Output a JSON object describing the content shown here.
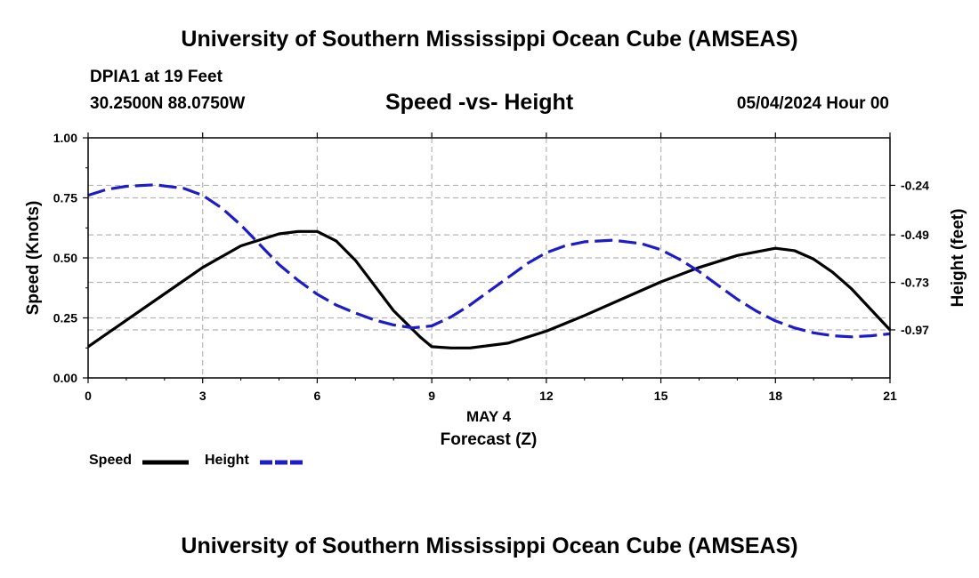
{
  "page": {
    "title": "University of Southern Mississippi Ocean Cube (AMSEAS)",
    "footer_title": "University of Southern Mississippi Ocean Cube (AMSEAS)",
    "station_line1": "DPIA1 at 19 Feet",
    "station_line2": "30.2500N  88.0750W",
    "date_label": "05/04/2024 Hour 00"
  },
  "chart_data": {
    "type": "line",
    "title": "Speed -vs- Height",
    "xlabel": "Forecast (Z)",
    "xlabel_date": "MAY 4",
    "ylabel": "Speed (Knots)",
    "y2label": "Height (feet)",
    "xlim": [
      0,
      21
    ],
    "ylim": [
      0,
      1
    ],
    "y2lim": [
      -1.2127,
      -0.0
    ],
    "x_ticks": [
      0,
      3,
      6,
      9,
      12,
      15,
      18,
      21
    ],
    "x_tick_labels": [
      "0",
      "3",
      "6",
      "9",
      "12",
      "15",
      "18",
      "21"
    ],
    "y_ticks": [
      0,
      0.25,
      0.5,
      0.75,
      1.0
    ],
    "y_tick_labels": [
      "0.00",
      "0.25",
      "0.50",
      "0.75",
      "1.00"
    ],
    "y2_ticks": [
      -0.24,
      -0.49,
      -0.73,
      -0.97
    ],
    "y2_tick_labels": [
      "-0.24",
      "-0.49",
      "-0.73",
      "-0.97"
    ],
    "grid": true,
    "series": [
      {
        "name": "Speed",
        "axis": "left",
        "color": "#000000",
        "dash": "solid",
        "x": [
          0,
          1,
          2,
          3,
          4,
          5,
          5.5,
          6,
          6.5,
          7,
          8,
          8.7,
          9,
          9.5,
          10,
          11,
          12,
          13,
          14,
          15,
          16,
          17,
          18,
          18.5,
          19,
          19.5,
          20,
          21
        ],
        "values": [
          0.13,
          0.24,
          0.35,
          0.46,
          0.55,
          0.6,
          0.61,
          0.61,
          0.57,
          0.49,
          0.28,
          0.17,
          0.13,
          0.125,
          0.125,
          0.145,
          0.195,
          0.26,
          0.33,
          0.4,
          0.46,
          0.51,
          0.54,
          0.53,
          0.495,
          0.44,
          0.37,
          0.2
        ]
      },
      {
        "name": "Height",
        "axis": "right",
        "color": "#1c1cc8",
        "dash": "dashed",
        "x": [
          0,
          0.5,
          1,
          1.75,
          2.5,
          3,
          3.5,
          4,
          4.5,
          5,
          5.5,
          6,
          6.5,
          7,
          7.5,
          8,
          8.5,
          9,
          9.5,
          10,
          10.5,
          11,
          11.5,
          12,
          12.5,
          13,
          13.75,
          14.5,
          15,
          15.5,
          16,
          16.5,
          17,
          17.5,
          18,
          18.5,
          19,
          19.5,
          20,
          20.5,
          21
        ],
        "values": [
          -0.29,
          -0.26,
          -0.245,
          -0.237,
          -0.255,
          -0.29,
          -0.355,
          -0.44,
          -0.54,
          -0.64,
          -0.72,
          -0.79,
          -0.845,
          -0.885,
          -0.92,
          -0.945,
          -0.96,
          -0.95,
          -0.905,
          -0.845,
          -0.775,
          -0.705,
          -0.635,
          -0.58,
          -0.545,
          -0.525,
          -0.517,
          -0.535,
          -0.565,
          -0.615,
          -0.675,
          -0.745,
          -0.815,
          -0.875,
          -0.925,
          -0.96,
          -0.985,
          -1.0,
          -1.005,
          -1.0,
          -0.99
        ]
      }
    ],
    "legend": [
      {
        "label": "Speed",
        "color": "#000000",
        "dash": "solid"
      },
      {
        "label": "Height",
        "color": "#1c1cc8",
        "dash": "dashed"
      }
    ]
  }
}
